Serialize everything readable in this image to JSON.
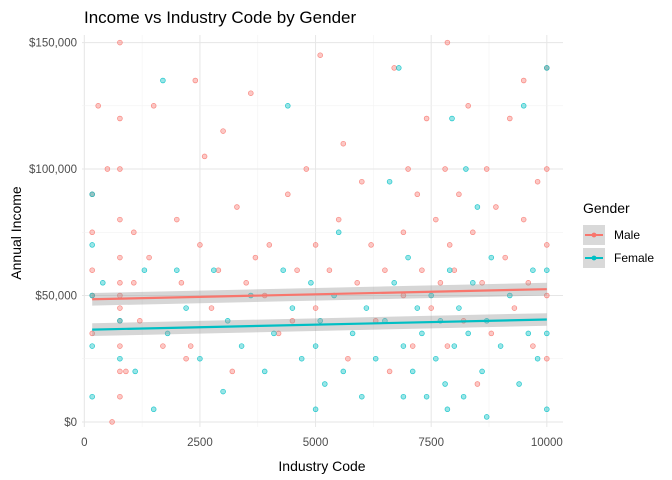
{
  "chart_data": {
    "type": "scatter",
    "title": "Income vs Industry Code by Gender",
    "xlabel": "Industry Code",
    "ylabel": "Annual Income",
    "xlim": [
      -50,
      10350
    ],
    "ylim": [
      -2000,
      153000
    ],
    "x_ticks": [
      0,
      2500,
      5000,
      7500,
      10000
    ],
    "x_tick_labels": [
      "0",
      "2500",
      "5000",
      "7500",
      "10000"
    ],
    "y_ticks": [
      0,
      50000,
      100000,
      150000
    ],
    "y_tick_labels": [
      "$0",
      "$50,000",
      "$100,000",
      "$150,000"
    ],
    "grid": true,
    "legend": {
      "title": "Gender",
      "placement": "right",
      "entries": [
        "Male",
        "Female"
      ]
    },
    "series": [
      {
        "name": "Male",
        "color": "#F8766D",
        "trend": {
          "x": [
            170,
            10000
          ],
          "y": [
            48500,
            52500
          ],
          "se": 2500
        },
        "points": [
          [
            300,
            125000
          ],
          [
            500,
            100000
          ],
          [
            770,
            150000
          ],
          [
            770,
            120000
          ],
          [
            770,
            100000
          ],
          [
            770,
            80000
          ],
          [
            770,
            65000
          ],
          [
            770,
            55000
          ],
          [
            770,
            50000
          ],
          [
            770,
            45000
          ],
          [
            770,
            40000
          ],
          [
            770,
            30000
          ],
          [
            770,
            20000
          ],
          [
            770,
            10000
          ],
          [
            170,
            75000
          ],
          [
            170,
            60000
          ],
          [
            170,
            50000
          ],
          [
            170,
            35000
          ],
          [
            170,
            90000
          ],
          [
            1070,
            75000
          ],
          [
            1070,
            55000
          ],
          [
            1200,
            40000
          ],
          [
            1400,
            65000
          ],
          [
            1500,
            125000
          ],
          [
            1700,
            30000
          ],
          [
            2000,
            80000
          ],
          [
            2100,
            55000
          ],
          [
            2200,
            25000
          ],
          [
            2400,
            135000
          ],
          [
            2500,
            70000
          ],
          [
            2600,
            105000
          ],
          [
            2750,
            45000
          ],
          [
            2900,
            60000
          ],
          [
            3000,
            115000
          ],
          [
            3200,
            20000
          ],
          [
            3300,
            85000
          ],
          [
            3600,
            130000
          ],
          [
            3700,
            65000
          ],
          [
            3900,
            50000
          ],
          [
            4000,
            70000
          ],
          [
            4200,
            35000
          ],
          [
            4400,
            90000
          ],
          [
            4600,
            60000
          ],
          [
            4800,
            100000
          ],
          [
            5000,
            45000
          ],
          [
            5000,
            70000
          ],
          [
            5100,
            145000
          ],
          [
            5300,
            60000
          ],
          [
            5500,
            80000
          ],
          [
            5700,
            25000
          ],
          [
            5900,
            55000
          ],
          [
            6000,
            95000
          ],
          [
            6200,
            70000
          ],
          [
            6300,
            40000
          ],
          [
            6500,
            60000
          ],
          [
            6700,
            140000
          ],
          [
            6900,
            75000
          ],
          [
            6900,
            50000
          ],
          [
            7000,
            100000
          ],
          [
            7100,
            30000
          ],
          [
            7200,
            90000
          ],
          [
            7300,
            60000
          ],
          [
            7400,
            120000
          ],
          [
            7500,
            45000
          ],
          [
            7600,
            80000
          ],
          [
            7700,
            55000
          ],
          [
            7800,
            100000
          ],
          [
            7850,
            150000
          ],
          [
            7850,
            30000
          ],
          [
            7900,
            70000
          ],
          [
            8000,
            60000
          ],
          [
            8100,
            90000
          ],
          [
            8200,
            40000
          ],
          [
            8300,
            125000
          ],
          [
            8400,
            75000
          ],
          [
            8600,
            55000
          ],
          [
            8700,
            100000
          ],
          [
            8800,
            35000
          ],
          [
            8900,
            85000
          ],
          [
            9100,
            65000
          ],
          [
            9200,
            120000
          ],
          [
            9300,
            45000
          ],
          [
            9500,
            135000
          ],
          [
            9500,
            80000
          ],
          [
            9600,
            55000
          ],
          [
            9700,
            30000
          ],
          [
            9800,
            95000
          ],
          [
            10000,
            140000
          ],
          [
            10000,
            100000
          ],
          [
            10000,
            70000
          ],
          [
            10000,
            50000
          ],
          [
            10000,
            25000
          ],
          [
            3500,
            55000
          ],
          [
            4500,
            40000
          ],
          [
            5600,
            110000
          ],
          [
            6600,
            20000
          ],
          [
            2300,
            30000
          ],
          [
            900,
            20000
          ],
          [
            600,
            0
          ],
          [
            8500,
            15000
          ]
        ]
      },
      {
        "name": "Female",
        "color": "#00BFC4",
        "trend": {
          "x": [
            170,
            10000
          ],
          "y": [
            36500,
            40500
          ],
          "se": 2500
        },
        "points": [
          [
            170,
            90000
          ],
          [
            170,
            70000
          ],
          [
            170,
            50000
          ],
          [
            170,
            30000
          ],
          [
            170,
            10000
          ],
          [
            400,
            55000
          ],
          [
            770,
            40000
          ],
          [
            770,
            25000
          ],
          [
            1100,
            20000
          ],
          [
            1300,
            60000
          ],
          [
            1700,
            135000
          ],
          [
            1800,
            35000
          ],
          [
            2200,
            45000
          ],
          [
            2500,
            25000
          ],
          [
            2800,
            60000
          ],
          [
            3100,
            40000
          ],
          [
            3400,
            30000
          ],
          [
            3600,
            50000
          ],
          [
            3900,
            20000
          ],
          [
            4100,
            35000
          ],
          [
            4300,
            60000
          ],
          [
            4500,
            45000
          ],
          [
            4700,
            25000
          ],
          [
            4900,
            55000
          ],
          [
            5000,
            5000
          ],
          [
            5000,
            30000
          ],
          [
            5100,
            40000
          ],
          [
            5200,
            15000
          ],
          [
            5400,
            50000
          ],
          [
            5600,
            20000
          ],
          [
            5800,
            35000
          ],
          [
            6000,
            10000
          ],
          [
            6100,
            45000
          ],
          [
            6300,
            25000
          ],
          [
            6500,
            40000
          ],
          [
            6700,
            55000
          ],
          [
            6800,
            140000
          ],
          [
            6900,
            30000
          ],
          [
            6900,
            10000
          ],
          [
            7000,
            65000
          ],
          [
            7100,
            20000
          ],
          [
            7200,
            45000
          ],
          [
            7300,
            35000
          ],
          [
            7400,
            10000
          ],
          [
            7500,
            50000
          ],
          [
            7600,
            25000
          ],
          [
            7700,
            40000
          ],
          [
            7800,
            15000
          ],
          [
            7850,
            5000
          ],
          [
            7900,
            60000
          ],
          [
            8000,
            30000
          ],
          [
            8100,
            45000
          ],
          [
            8200,
            10000
          ],
          [
            8300,
            35000
          ],
          [
            8400,
            55000
          ],
          [
            8600,
            20000
          ],
          [
            8700,
            40000
          ],
          [
            8700,
            2000
          ],
          [
            8800,
            65000
          ],
          [
            9000,
            30000
          ],
          [
            9200,
            50000
          ],
          [
            9400,
            15000
          ],
          [
            9500,
            125000
          ],
          [
            9600,
            35000
          ],
          [
            9700,
            60000
          ],
          [
            9800,
            25000
          ],
          [
            10000,
            140000
          ],
          [
            10000,
            60000
          ],
          [
            10000,
            35000
          ],
          [
            10000,
            5000
          ],
          [
            3000,
            12000
          ],
          [
            4400,
            125000
          ],
          [
            5500,
            75000
          ],
          [
            6600,
            95000
          ],
          [
            2000,
            60000
          ],
          [
            1500,
            5000
          ],
          [
            7950,
            120000
          ],
          [
            8250,
            100000
          ],
          [
            8500,
            85000
          ]
        ]
      }
    ]
  }
}
